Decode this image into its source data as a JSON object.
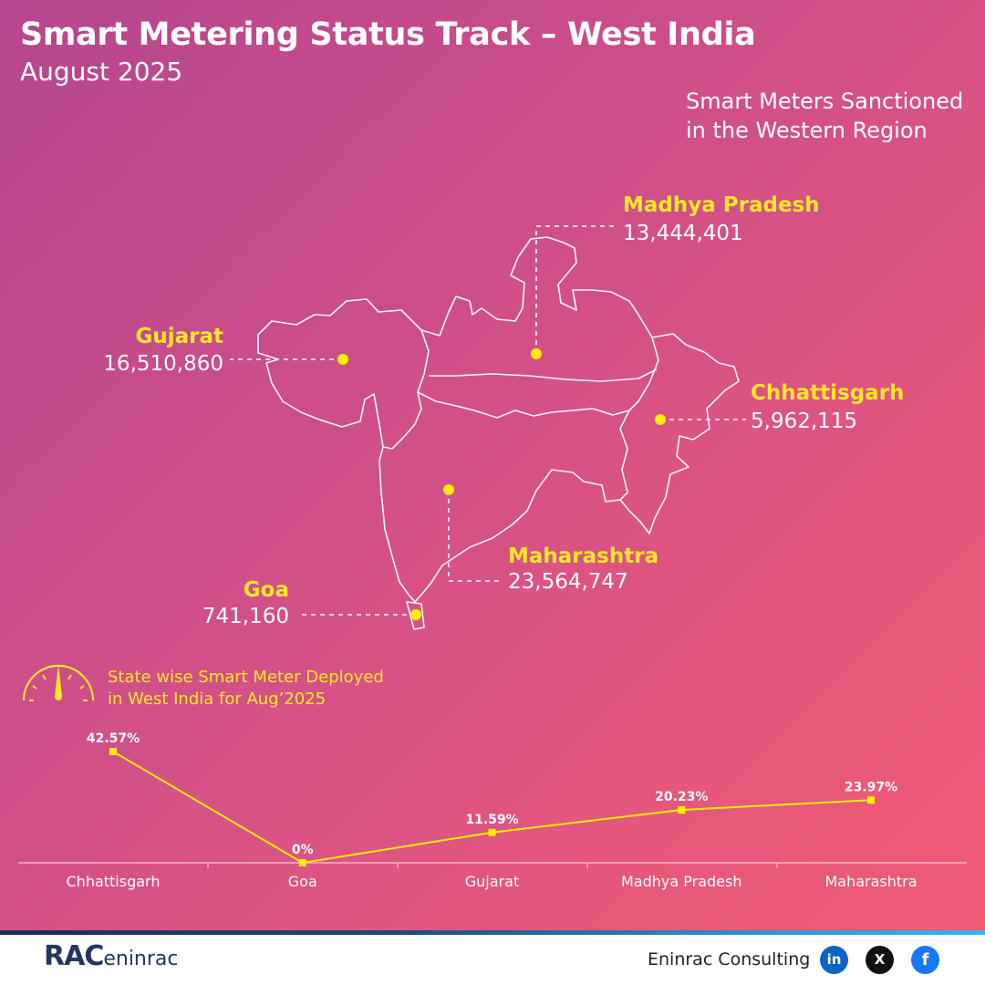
{
  "header": {
    "title": "Smart Metering Status Track – West India",
    "subtitle": "August 2025"
  },
  "map": {
    "sanctioned_title_line1": "Smart Meters Sanctioned",
    "sanctioned_title_line2": "in the Western Region",
    "states": [
      {
        "name": "Madhya Pradesh",
        "value": "13,444,401"
      },
      {
        "name": "Gujarat",
        "value": "16,510,860"
      },
      {
        "name": "Chhattisgarh",
        "value": "5,962,115"
      },
      {
        "name": "Maharashtra",
        "value": "23,564,747"
      },
      {
        "name": "Goa",
        "value": "741,160"
      }
    ],
    "colors": {
      "label": "#ffe82a",
      "marker": "#ffee00",
      "outline": "#ffffff"
    }
  },
  "deployment": {
    "title_line1": "State wise Smart Meter Deployed",
    "title_line2": "in West India for Aug’2025",
    "icon": "gauge-icon"
  },
  "chart_data": {
    "type": "line",
    "categories": [
      "Chhattisgarh",
      "Goa",
      "Gujarat",
      "Madhya Pradesh",
      "Maharashtra"
    ],
    "values": [
      42.57,
      0,
      11.59,
      20.23,
      23.97
    ],
    "labels": [
      "42.57%",
      "0%",
      "11.59%",
      "20.23%",
      "23.97%"
    ],
    "ylim": [
      0,
      50
    ],
    "grid": false,
    "line_color": "#ffee00"
  },
  "footer": {
    "logo_text": "RAC",
    "logo_sub": "eninrac",
    "company": "Eninrac Consulting",
    "social": [
      "in",
      "X",
      "f"
    ]
  }
}
